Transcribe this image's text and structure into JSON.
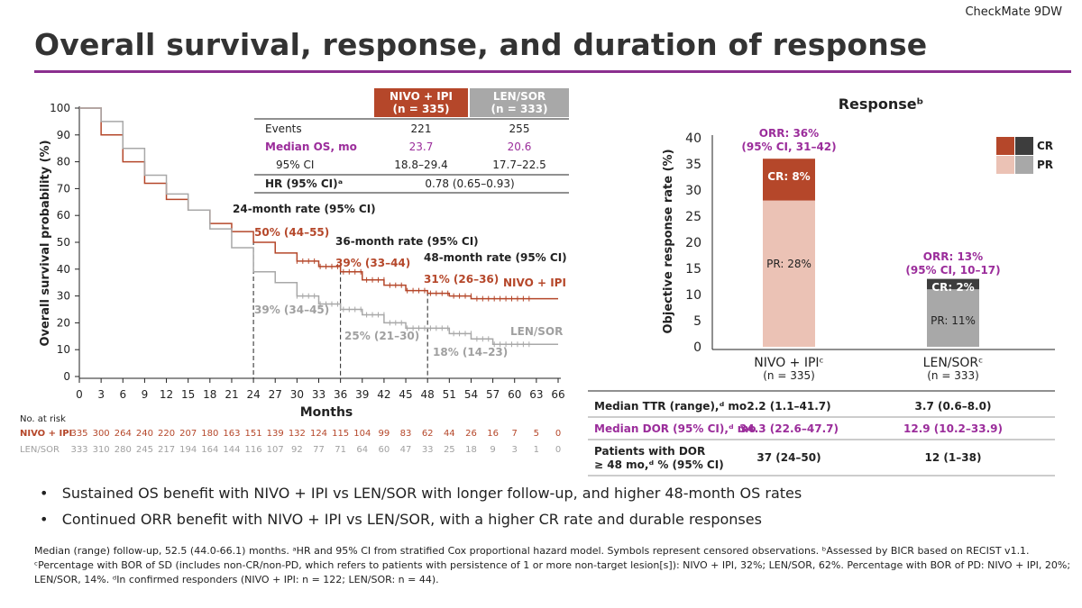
{
  "brand": "CheckMate 9DW",
  "title": "Overall survival, response, and duration of response",
  "os_table": {
    "headers": [
      "NIVO + IPI\n(n = 335)",
      "LEN/SOR\n(n = 333)"
    ],
    "header1": [
      "NIVO + IPI",
      "(n = 335)"
    ],
    "header2": [
      "LEN/SOR",
      "(n = 333)"
    ],
    "rows": [
      {
        "label": "Events",
        "a": "221",
        "b": "255"
      },
      {
        "label": "Median OS, mo",
        "a": "23.7",
        "b": "20.6"
      },
      {
        "label": "95% CI",
        "a": "18.8–29.4",
        "b": "17.7–22.5"
      }
    ],
    "hr_label": "HR (95% CI)ᵃ",
    "hr_value": "0.78 (0.65–0.93)"
  },
  "chart_data": [
    {
      "type": "line",
      "title": "Overall survival",
      "xlabel": "Months",
      "ylabel": "Overall survival probability (%)",
      "xlim": [
        0,
        66
      ],
      "ylim": [
        0,
        100
      ],
      "xticks": [
        0,
        3,
        6,
        9,
        12,
        15,
        18,
        21,
        24,
        27,
        30,
        33,
        36,
        39,
        42,
        45,
        48,
        51,
        54,
        57,
        60,
        63,
        66
      ],
      "yticks": [
        0,
        10,
        20,
        30,
        40,
        50,
        60,
        70,
        80,
        90,
        100
      ],
      "series": [
        {
          "name": "NIVO + IPI",
          "color": "#b5472a",
          "x": [
            0,
            3,
            6,
            9,
            12,
            15,
            18,
            21,
            24,
            27,
            30,
            33,
            36,
            39,
            42,
            45,
            48,
            51,
            54,
            66
          ],
          "y": [
            100,
            90,
            80,
            72,
            66,
            62,
            57,
            54,
            50,
            46,
            43,
            41,
            39,
            36,
            34,
            32,
            31,
            30,
            29,
            29
          ]
        },
        {
          "name": "LEN/SOR",
          "color": "#a8a8a8",
          "x": [
            0,
            3,
            6,
            9,
            12,
            15,
            18,
            21,
            24,
            27,
            30,
            33,
            36,
            39,
            42,
            45,
            48,
            51,
            54,
            57,
            66
          ],
          "y": [
            100,
            95,
            85,
            75,
            68,
            62,
            55,
            48,
            39,
            35,
            30,
            27,
            25,
            23,
            20,
            18,
            18,
            16,
            14,
            12,
            12
          ]
        }
      ],
      "annotations": {
        "r24": "24-month rate (95% CI)",
        "r36": "36-month rate (95% CI)",
        "r48": "48-month rate (95% CI)",
        "n24": "50% (44–55)",
        "n36": "39% (33–44)",
        "n48": "31% (26–36)",
        "l24": "39% (34–45)",
        "l36": "25% (21–30)",
        "l48": "18% (14–23)",
        "nlabel": "NIVO + IPI",
        "llabel": "LEN/SOR"
      },
      "at_risk": {
        "title": "No. at risk",
        "NIVO + IPI": [
          335,
          300,
          264,
          240,
          220,
          207,
          180,
          163,
          151,
          139,
          132,
          124,
          115,
          104,
          99,
          83,
          62,
          44,
          26,
          16,
          7,
          5,
          0
        ],
        "LEN/SOR": [
          333,
          310,
          280,
          245,
          217,
          194,
          164,
          144,
          116,
          107,
          92,
          77,
          71,
          64,
          60,
          47,
          33,
          25,
          18,
          9,
          3,
          1,
          0
        ]
      }
    },
    {
      "type": "bar",
      "title": "Responseᵇ",
      "ylabel": "Objective response rate (%)",
      "ylim": [
        0,
        40
      ],
      "yticks": [
        0,
        5,
        10,
        15,
        20,
        25,
        30,
        35,
        40
      ],
      "categories": [
        "NIVO + IPIᶜ",
        "LEN/SORᶜ"
      ],
      "n": [
        "(n = 335)",
        "(n = 333)"
      ],
      "series": [
        {
          "name": "PR",
          "values": [
            28,
            11
          ],
          "colors": [
            "#ebc2b5",
            "#a8a8a8"
          ]
        },
        {
          "name": "CR",
          "values": [
            8,
            2
          ],
          "colors": [
            "#b5472a",
            "#3d3d3d"
          ]
        }
      ],
      "labels": {
        "pr": [
          "PR: 28%",
          "PR: 11%"
        ],
        "cr": [
          "CR: 8%",
          "CR: 2%"
        ],
        "orr": [
          "ORR: 36%",
          "ORR: 13%"
        ],
        "ci": [
          "(95% CI, 31–42)",
          "(95% CI, 10–17)"
        ]
      },
      "legend": [
        "CR",
        "PR"
      ]
    }
  ],
  "resp_table": [
    {
      "label": "Median TTR (range),ᵈ mo",
      "a": "2.2 (1.1–41.7)",
      "b": "3.7 (0.6–8.0)"
    },
    {
      "label": "Median DOR (95% CI),ᵈ mo",
      "a": "34.3 (22.6–47.7)",
      "b": "12.9 (10.2–33.9)"
    },
    {
      "label": "Patients with DOR",
      "label2": "≥ 48 mo,ᵈ % (95% CI)",
      "a": "37 (24–50)",
      "b": "12 (1–38)"
    }
  ],
  "bullets": [
    "Sustained OS benefit with NIVO + IPI vs LEN/SOR with longer follow-up, and higher 48-month OS rates",
    "Continued ORR benefit with NIVO + IPI vs LEN/SOR, with a higher CR rate and durable responses"
  ],
  "footnote": "Median (range) follow-up, 52.5 (44.0-66.1) months. ᵃHR and 95% CI from stratified Cox proportional hazard model. Symbols represent censored observations. ᵇAssessed by BICR based on RECIST v1.1. ᶜPercentage with BOR of SD (includes non-CR/non-PD, which refers to patients with persistence of 1 or more non-target lesion[s]): NIVO + IPI, 32%; LEN/SOR, 62%. Percentage with BOR of PD: NIVO + IPI, 20%; LEN/SOR, 14%. ᵈIn confirmed responders (NIVO + IPI: n = 122; LEN/SOR: n = 44)."
}
